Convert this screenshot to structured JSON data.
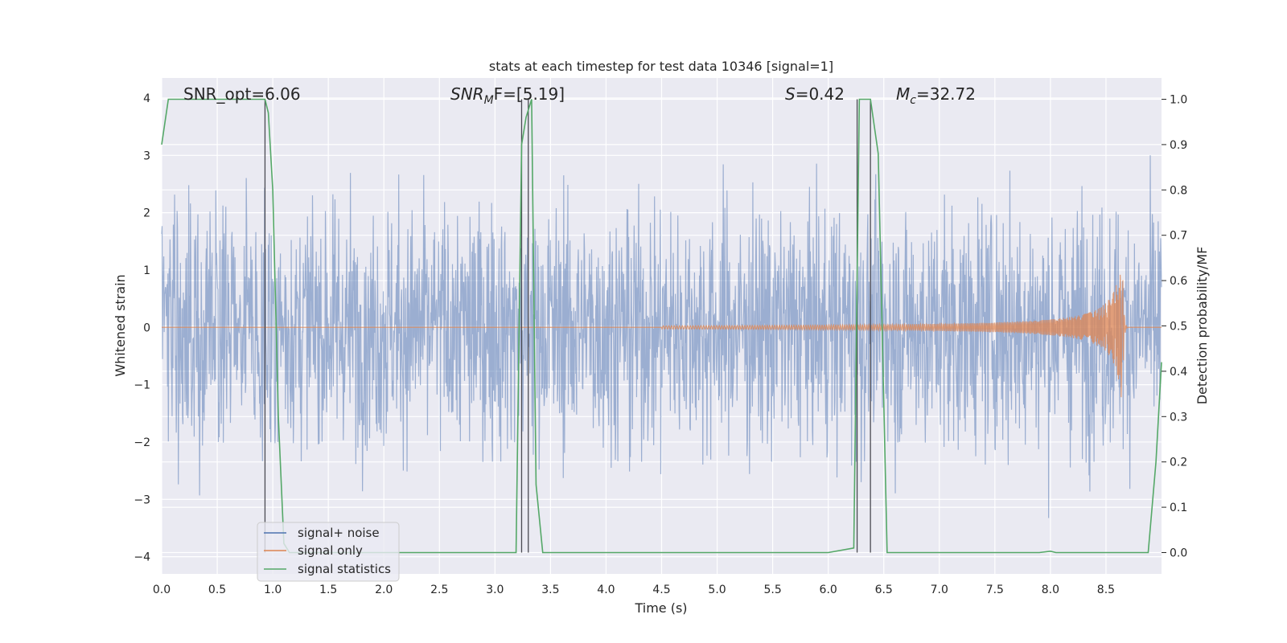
{
  "chart_data": {
    "type": "line",
    "title": "stats at each timestep for test data 10346 [signal=1]",
    "xlabel": "Time (s)",
    "ylabel_left": "Whitened strain",
    "ylabel_right": "Detection probability/MF",
    "xlim": [
      0,
      9
    ],
    "ylim_left": [
      -4.3,
      4.35
    ],
    "ylim_right": [
      -0.047,
      1.047
    ],
    "x_ticks": [
      "0.0",
      "0.5",
      "1.0",
      "1.5",
      "2.0",
      "2.5",
      "3.0",
      "3.5",
      "4.0",
      "4.5",
      "5.0",
      "5.5",
      "6.0",
      "6.5",
      "7.0",
      "7.5",
      "8.0",
      "8.5"
    ],
    "y_ticks_left": [
      "4",
      "3",
      "2",
      "1",
      "0",
      "−1",
      "−2",
      "−3",
      "−4"
    ],
    "y_ticks_right": [
      "1.0",
      "0.9",
      "0.8",
      "0.7",
      "0.6",
      "0.5",
      "0.4",
      "0.3",
      "0.2",
      "0.1",
      "0.0"
    ],
    "grid": true,
    "legend_location": "lower-left",
    "annotations": {
      "snr_opt": "SNR_opt=6.06",
      "snr_mf_main": "SNR",
      "snr_mf_sub": "M",
      "snr_mf_rest": "F=[5.19]",
      "s_var": "S",
      "s_rest": "=0.42",
      "mc_var": "M",
      "mc_sub": "c",
      "mc_rest": "=32.72"
    },
    "series": [
      {
        "name": "signal+ noise",
        "axis": "left",
        "color": "#4c72b0",
        "description_values": "dense whitened noise, amplitude roughly within [-3.5, 4]"
      },
      {
        "name": "signal only",
        "axis": "left",
        "color": "#dd8452",
        "chirp": {
          "start": 4.5,
          "merger": 8.65,
          "peak_amplitude": 1.5
        }
      },
      {
        "name": "signal statistics",
        "axis": "right",
        "color": "#55a868",
        "x": [
          0.0,
          0.06,
          0.1,
          0.15,
          0.3,
          0.5,
          0.7,
          0.85,
          0.93,
          0.96,
          1.0,
          1.05,
          1.1,
          1.15,
          1.5,
          2.0,
          2.5,
          3.0,
          3.19,
          3.24,
          3.28,
          3.33,
          3.37,
          3.43,
          3.5,
          4.0,
          5.0,
          6.0,
          6.23,
          6.28,
          6.33,
          6.38,
          6.45,
          6.53,
          7.0,
          7.5,
          7.9,
          8.0,
          8.05,
          8.5,
          8.88,
          8.95,
          9.0
        ],
        "y": [
          0.9,
          1.0,
          1.0,
          1.0,
          1.0,
          1.0,
          1.0,
          1.0,
          1.0,
          0.97,
          0.8,
          0.3,
          0.02,
          0.0,
          0.0,
          0.0,
          0.0,
          0.0,
          0.0,
          0.9,
          0.96,
          1.0,
          0.15,
          0.0,
          0.0,
          0.0,
          0.0,
          0.0,
          0.01,
          1.0,
          1.0,
          1.0,
          0.88,
          0.0,
          0.0,
          0.0,
          0.0,
          0.003,
          0.0,
          0.0,
          0.0,
          0.2,
          0.42
        ]
      }
    ],
    "vertical_markers": [
      0.93,
      3.24,
      3.3,
      6.26,
      6.38
    ]
  },
  "colors": {
    "plot_background": "#eaeaf2",
    "grid": "#ffffff",
    "marker_line": "#4a4a52"
  }
}
